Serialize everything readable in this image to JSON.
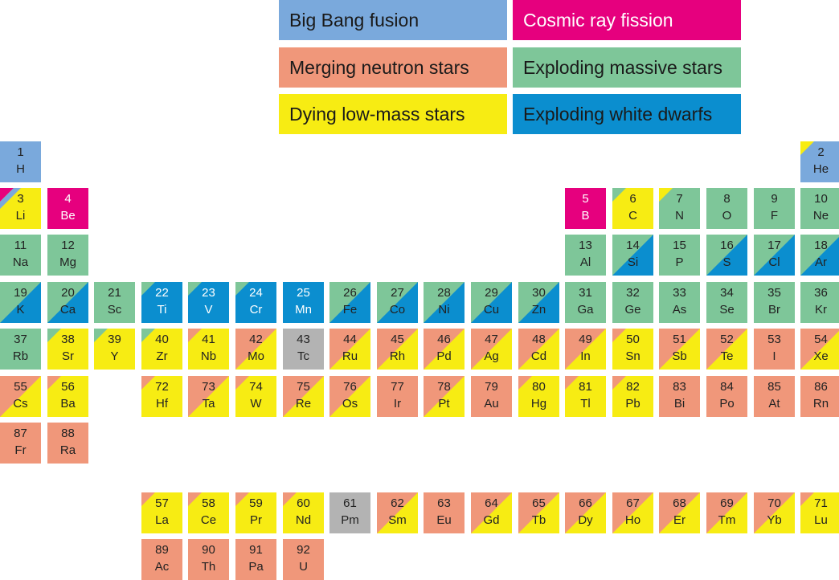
{
  "colors": {
    "bb": "#7aa9dc",
    "cr": "#e6007e",
    "ns": "#f0977a",
    "ms": "#7ec699",
    "lm": "#f7ec13",
    "wd": "#0b8ecf",
    "un": "#b3b3b3"
  },
  "legend": [
    {
      "key": "bb",
      "label": "Big Bang fusion"
    },
    {
      "key": "cr",
      "label": "Cosmic ray fission"
    },
    {
      "key": "ns",
      "label": "Merging neutron stars"
    },
    {
      "key": "ms",
      "label": "Exploding massive stars"
    },
    {
      "key": "lm",
      "label": "Dying low-mass stars"
    },
    {
      "key": "wd",
      "label": "Exploding white dwarfs"
    }
  ],
  "elements": [
    {
      "n": "1",
      "s": "H",
      "row": 0,
      "col": 0,
      "main": "bb",
      "tri": []
    },
    {
      "n": "2",
      "s": "He",
      "row": 0,
      "col": 17,
      "main": "bb",
      "tri": [
        "lm"
      ]
    },
    {
      "n": "3",
      "s": "Li",
      "row": 1,
      "col": 0,
      "main": "lm",
      "tri": [
        "cr",
        "bb"
      ]
    },
    {
      "n": "4",
      "s": "Be",
      "row": 1,
      "col": 1,
      "main": "cr",
      "tri": []
    },
    {
      "n": "5",
      "s": "B",
      "row": 1,
      "col": 12,
      "main": "cr",
      "tri": []
    },
    {
      "n": "6",
      "s": "C",
      "row": 1,
      "col": 13,
      "main": "lm",
      "tri": [
        "ms"
      ]
    },
    {
      "n": "7",
      "s": "N",
      "row": 1,
      "col": 14,
      "main": "ms",
      "tri": [
        "lm"
      ]
    },
    {
      "n": "8",
      "s": "O",
      "row": 1,
      "col": 15,
      "main": "ms",
      "tri": []
    },
    {
      "n": "9",
      "s": "F",
      "row": 1,
      "col": 16,
      "main": "ms",
      "tri": []
    },
    {
      "n": "10",
      "s": "Ne",
      "row": 1,
      "col": 17,
      "main": "ms",
      "tri": []
    },
    {
      "n": "11",
      "s": "Na",
      "row": 2,
      "col": 0,
      "main": "ms",
      "tri": []
    },
    {
      "n": "12",
      "s": "Mg",
      "row": 2,
      "col": 1,
      "main": "ms",
      "tri": []
    },
    {
      "n": "13",
      "s": "Al",
      "row": 2,
      "col": 12,
      "main": "ms",
      "tri": []
    },
    {
      "n": "14",
      "s": "Si",
      "row": 2,
      "col": 13,
      "main": "ms",
      "lr": "wd"
    },
    {
      "n": "15",
      "s": "P",
      "row": 2,
      "col": 14,
      "main": "ms",
      "tri": []
    },
    {
      "n": "16",
      "s": "S",
      "row": 2,
      "col": 15,
      "main": "ms",
      "lr": "wd"
    },
    {
      "n": "17",
      "s": "Cl",
      "row": 2,
      "col": 16,
      "main": "ms",
      "lr": "wd"
    },
    {
      "n": "18",
      "s": "Ar",
      "row": 2,
      "col": 17,
      "main": "ms",
      "lr": "wd"
    },
    {
      "n": "19",
      "s": "K",
      "row": 3,
      "col": 0,
      "main": "ms",
      "lr": "wd"
    },
    {
      "n": "20",
      "s": "Ca",
      "row": 3,
      "col": 1,
      "main": "ms",
      "lr": "wd"
    },
    {
      "n": "21",
      "s": "Sc",
      "row": 3,
      "col": 2,
      "main": "ms",
      "tri": []
    },
    {
      "n": "22",
      "s": "Ti",
      "row": 3,
      "col": 3,
      "main": "wd",
      "tri": [
        "ms"
      ]
    },
    {
      "n": "23",
      "s": "V",
      "row": 3,
      "col": 4,
      "main": "wd",
      "tri": [
        "ms"
      ]
    },
    {
      "n": "24",
      "s": "Cr",
      "row": 3,
      "col": 5,
      "main": "wd",
      "tri": [
        "ms"
      ]
    },
    {
      "n": "25",
      "s": "Mn",
      "row": 3,
      "col": 6,
      "main": "wd",
      "tri": []
    },
    {
      "n": "26",
      "s": "Fe",
      "row": 3,
      "col": 7,
      "main": "ms",
      "lr": "wd"
    },
    {
      "n": "27",
      "s": "Co",
      "row": 3,
      "col": 8,
      "main": "ms",
      "lr": "wd"
    },
    {
      "n": "28",
      "s": "Ni",
      "row": 3,
      "col": 9,
      "main": "ms",
      "lr": "wd"
    },
    {
      "n": "29",
      "s": "Cu",
      "row": 3,
      "col": 10,
      "main": "ms",
      "lr": "wd"
    },
    {
      "n": "30",
      "s": "Zn",
      "row": 3,
      "col": 11,
      "main": "ms",
      "lr": "wd"
    },
    {
      "n": "31",
      "s": "Ga",
      "row": 3,
      "col": 12,
      "main": "ms",
      "tri": []
    },
    {
      "n": "32",
      "s": "Ge",
      "row": 3,
      "col": 13,
      "main": "ms",
      "tri": []
    },
    {
      "n": "33",
      "s": "As",
      "row": 3,
      "col": 14,
      "main": "ms",
      "tri": []
    },
    {
      "n": "34",
      "s": "Se",
      "row": 3,
      "col": 15,
      "main": "ms",
      "tri": []
    },
    {
      "n": "35",
      "s": "Br",
      "row": 3,
      "col": 16,
      "main": "ms",
      "tri": []
    },
    {
      "n": "36",
      "s": "Kr",
      "row": 3,
      "col": 17,
      "main": "ms",
      "tri": []
    },
    {
      "n": "37",
      "s": "Rb",
      "row": 4,
      "col": 0,
      "main": "ms",
      "tri": []
    },
    {
      "n": "38",
      "s": "Sr",
      "row": 4,
      "col": 1,
      "main": "lm",
      "tri": [
        "ms"
      ]
    },
    {
      "n": "39",
      "s": "Y",
      "row": 4,
      "col": 2,
      "main": "lm",
      "tri": [
        "ms"
      ]
    },
    {
      "n": "40",
      "s": "Zr",
      "row": 4,
      "col": 3,
      "main": "lm",
      "tri": [
        "ms"
      ]
    },
    {
      "n": "41",
      "s": "Nb",
      "row": 4,
      "col": 4,
      "main": "lm",
      "tri": [
        "ns"
      ]
    },
    {
      "n": "42",
      "s": "Mo",
      "row": 4,
      "col": 5,
      "main": "ns",
      "lr": "lm"
    },
    {
      "n": "43",
      "s": "Tc",
      "row": 4,
      "col": 6,
      "main": "un",
      "tri": []
    },
    {
      "n": "44",
      "s": "Ru",
      "row": 4,
      "col": 7,
      "main": "ns",
      "lr": "lm"
    },
    {
      "n": "45",
      "s": "Rh",
      "row": 4,
      "col": 8,
      "main": "ns",
      "lr": "lm"
    },
    {
      "n": "46",
      "s": "Pd",
      "row": 4,
      "col": 9,
      "main": "ns",
      "lr": "lm"
    },
    {
      "n": "47",
      "s": "Ag",
      "row": 4,
      "col": 10,
      "main": "ns",
      "lr": "lm"
    },
    {
      "n": "48",
      "s": "Cd",
      "row": 4,
      "col": 11,
      "main": "ns",
      "lr": "lm"
    },
    {
      "n": "49",
      "s": "In",
      "row": 4,
      "col": 12,
      "main": "ns",
      "lr": "lm"
    },
    {
      "n": "50",
      "s": "Sn",
      "row": 4,
      "col": 13,
      "main": "lm",
      "tri": [
        "ns"
      ]
    },
    {
      "n": "51",
      "s": "Sb",
      "row": 4,
      "col": 14,
      "main": "ns",
      "lr": "lm"
    },
    {
      "n": "52",
      "s": "Te",
      "row": 4,
      "col": 15,
      "main": "ns",
      "lr": "lm"
    },
    {
      "n": "53",
      "s": "I",
      "row": 4,
      "col": 16,
      "main": "ns",
      "tri": []
    },
    {
      "n": "54",
      "s": "Xe",
      "row": 4,
      "col": 17,
      "main": "ns",
      "lr": "lm"
    },
    {
      "n": "55",
      "s": "Cs",
      "row": 5,
      "col": 0,
      "main": "ns",
      "lr": "lm"
    },
    {
      "n": "56",
      "s": "Ba",
      "row": 5,
      "col": 1,
      "main": "lm",
      "tri": [
        "ns"
      ]
    },
    {
      "n": "72",
      "s": "Hf",
      "row": 5,
      "col": 3,
      "main": "lm",
      "tri": [
        "ns"
      ]
    },
    {
      "n": "73",
      "s": "Ta",
      "row": 5,
      "col": 4,
      "main": "ns",
      "lr": "lm"
    },
    {
      "n": "74",
      "s": "W",
      "row": 5,
      "col": 5,
      "main": "lm",
      "tri": [
        "ns"
      ]
    },
    {
      "n": "75",
      "s": "Re",
      "row": 5,
      "col": 6,
      "main": "ns",
      "lr": "lm"
    },
    {
      "n": "76",
      "s": "Os",
      "row": 5,
      "col": 7,
      "main": "ns",
      "lr": "lm"
    },
    {
      "n": "77",
      "s": "Ir",
      "row": 5,
      "col": 8,
      "main": "ns",
      "tri": []
    },
    {
      "n": "78",
      "s": "Pt",
      "row": 5,
      "col": 9,
      "main": "ns",
      "lr": "lm"
    },
    {
      "n": "79",
      "s": "Au",
      "row": 5,
      "col": 10,
      "main": "ns",
      "tri": []
    },
    {
      "n": "80",
      "s": "Hg",
      "row": 5,
      "col": 11,
      "main": "lm",
      "tri": [
        "ns"
      ]
    },
    {
      "n": "81",
      "s": "Tl",
      "row": 5,
      "col": 12,
      "main": "lm",
      "tri": [
        "ns"
      ]
    },
    {
      "n": "82",
      "s": "Pb",
      "row": 5,
      "col": 13,
      "main": "lm",
      "tri": [
        "ns"
      ]
    },
    {
      "n": "83",
      "s": "Bi",
      "row": 5,
      "col": 14,
      "main": "ns",
      "tri": []
    },
    {
      "n": "84",
      "s": "Po",
      "row": 5,
      "col": 15,
      "main": "ns",
      "tri": []
    },
    {
      "n": "85",
      "s": "At",
      "row": 5,
      "col": 16,
      "main": "ns",
      "tri": []
    },
    {
      "n": "86",
      "s": "Rn",
      "row": 5,
      "col": 17,
      "main": "ns",
      "tri": []
    },
    {
      "n": "87",
      "s": "Fr",
      "row": 6,
      "col": 0,
      "main": "ns",
      "tri": []
    },
    {
      "n": "88",
      "s": "Ra",
      "row": 6,
      "col": 1,
      "main": "ns",
      "tri": []
    },
    {
      "n": "57",
      "s": "La",
      "row": 7,
      "col": 3,
      "main": "lm",
      "tri": [
        "ns"
      ]
    },
    {
      "n": "58",
      "s": "Ce",
      "row": 7,
      "col": 4,
      "main": "lm",
      "tri": [
        "ns"
      ]
    },
    {
      "n": "59",
      "s": "Pr",
      "row": 7,
      "col": 5,
      "main": "lm",
      "tri": [
        "ns"
      ]
    },
    {
      "n": "60",
      "s": "Nd",
      "row": 7,
      "col": 6,
      "main": "lm",
      "tri": [
        "ns"
      ]
    },
    {
      "n": "61",
      "s": "Pm",
      "row": 7,
      "col": 7,
      "main": "un",
      "tri": []
    },
    {
      "n": "62",
      "s": "Sm",
      "row": 7,
      "col": 8,
      "main": "ns",
      "lr": "lm"
    },
    {
      "n": "63",
      "s": "Eu",
      "row": 7,
      "col": 9,
      "main": "ns",
      "tri": []
    },
    {
      "n": "64",
      "s": "Gd",
      "row": 7,
      "col": 10,
      "main": "ns",
      "lr": "lm"
    },
    {
      "n": "65",
      "s": "Tb",
      "row": 7,
      "col": 11,
      "main": "ns",
      "lr": "lm"
    },
    {
      "n": "66",
      "s": "Dy",
      "row": 7,
      "col": 12,
      "main": "ns",
      "lr": "lm"
    },
    {
      "n": "67",
      "s": "Ho",
      "row": 7,
      "col": 13,
      "main": "ns",
      "lr": "lm"
    },
    {
      "n": "68",
      "s": "Er",
      "row": 7,
      "col": 14,
      "main": "ns",
      "lr": "lm"
    },
    {
      "n": "69",
      "s": "Tm",
      "row": 7,
      "col": 15,
      "main": "ns",
      "lr": "lm"
    },
    {
      "n": "70",
      "s": "Yb",
      "row": 7,
      "col": 16,
      "main": "ns",
      "lr": "lm"
    },
    {
      "n": "71",
      "s": "Lu",
      "row": 7,
      "col": 17,
      "main": "lm",
      "tri": [
        "ns"
      ]
    },
    {
      "n": "89",
      "s": "Ac",
      "row": 8,
      "col": 3,
      "main": "ns",
      "tri": []
    },
    {
      "n": "90",
      "s": "Th",
      "row": 8,
      "col": 4,
      "main": "ns",
      "tri": []
    },
    {
      "n": "91",
      "s": "Pa",
      "row": 8,
      "col": 5,
      "main": "ns",
      "tri": []
    },
    {
      "n": "92",
      "s": "U",
      "row": 8,
      "col": 6,
      "main": "ns",
      "tri": []
    }
  ]
}
